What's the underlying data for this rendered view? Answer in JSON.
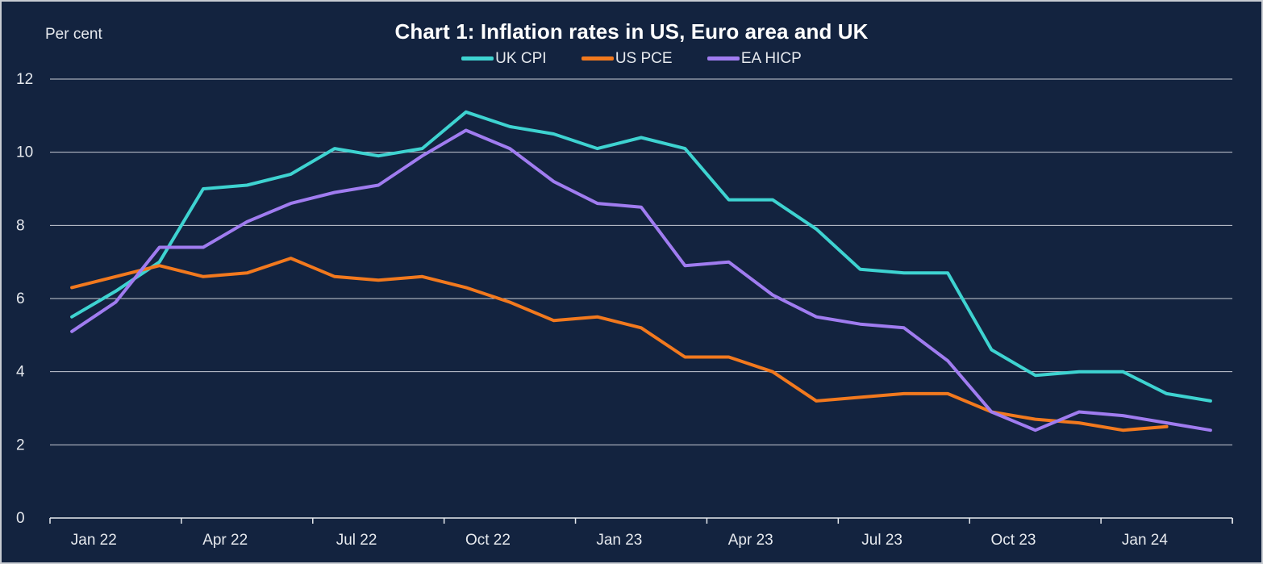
{
  "chart_data": {
    "type": "line",
    "title": "Chart 1: Inflation rates in US, Euro area and UK",
    "unit_label": "Per cent",
    "xlabel": "",
    "ylabel": "",
    "ylim": [
      0,
      12
    ],
    "yticks": [
      "0",
      "2",
      "4",
      "6",
      "8",
      "10",
      "12"
    ],
    "grid": true,
    "legend": "top-center",
    "x": [
      "Jan 22",
      "Feb 22",
      "Mar 22",
      "Apr 22",
      "May 22",
      "Jun 22",
      "Jul 22",
      "Aug 22",
      "Sep 22",
      "Oct 22",
      "Nov 22",
      "Dec 22",
      "Jan 23",
      "Feb 23",
      "Mar 23",
      "Apr 23",
      "May 23",
      "Jun 23",
      "Jul 23",
      "Aug 23",
      "Sep 23",
      "Oct 23",
      "Nov 23",
      "Dec 23",
      "Jan 24",
      "Feb 24",
      "Mar 24"
    ],
    "xtick_labels": [
      "Jan 22",
      "Apr 22",
      "Jul 22",
      "Oct 22",
      "Jan 23",
      "Apr 23",
      "Jul 23",
      "Oct 23",
      "Jan 24"
    ],
    "series": [
      {
        "name": "UK CPI",
        "color": "#3ed3d1",
        "values": [
          5.5,
          6.2,
          7.0,
          9.0,
          9.1,
          9.4,
          10.1,
          9.9,
          10.1,
          11.1,
          10.7,
          10.5,
          10.1,
          10.4,
          10.1,
          8.7,
          8.7,
          7.9,
          6.8,
          6.7,
          6.7,
          4.6,
          3.9,
          4.0,
          4.0,
          3.4,
          3.2
        ]
      },
      {
        "name": "US PCE",
        "color": "#f2791e",
        "values": [
          6.3,
          6.6,
          6.9,
          6.6,
          6.7,
          7.1,
          6.6,
          6.5,
          6.6,
          6.3,
          5.9,
          5.4,
          5.5,
          5.2,
          4.4,
          4.4,
          4.0,
          3.2,
          3.3,
          3.4,
          3.4,
          2.9,
          2.7,
          2.6,
          2.4,
          2.5,
          null
        ]
      },
      {
        "name": "EA HICP",
        "color": "#a07cf0",
        "values": [
          5.1,
          5.9,
          7.4,
          7.4,
          8.1,
          8.6,
          8.9,
          9.1,
          9.9,
          10.6,
          10.1,
          9.2,
          8.6,
          8.5,
          6.9,
          7.0,
          6.1,
          5.5,
          5.3,
          5.2,
          4.3,
          2.9,
          2.4,
          2.9,
          2.8,
          2.6,
          2.4
        ]
      }
    ]
  }
}
